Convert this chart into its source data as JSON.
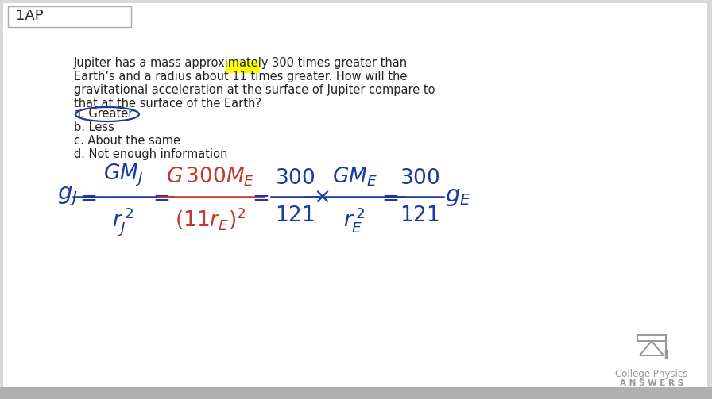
{
  "background_color": "#d8d8d8",
  "inner_bg_color": "#ffffff",
  "title_box_text": "1AP",
  "title_box_color": "#ffffff",
  "title_box_border": "#aaaaaa",
  "problem_text_line1": "Jupiter has a mass approximately 300 times greater than",
  "problem_text_line2": "Earth’s and a radius about 11 times greater. How will the",
  "problem_text_line3": "gravitational acceleration at the surface of Jupiter compare to",
  "problem_text_line4": "that at the surface of the Earth?",
  "answer_a": "a. Greater",
  "answer_b": "b. Less",
  "answer_c": "c. About the same",
  "answer_d": "d. Not enough information",
  "text_color": "#222222",
  "blue_color": "#1a3a9f",
  "red_color": "#c0392b",
  "highlight_color": "#ffff00",
  "circle_color": "#1a3a9f",
  "logo_text1": "College Physics",
  "logo_text2": "A N S W E R S",
  "logo_color": "#999999"
}
